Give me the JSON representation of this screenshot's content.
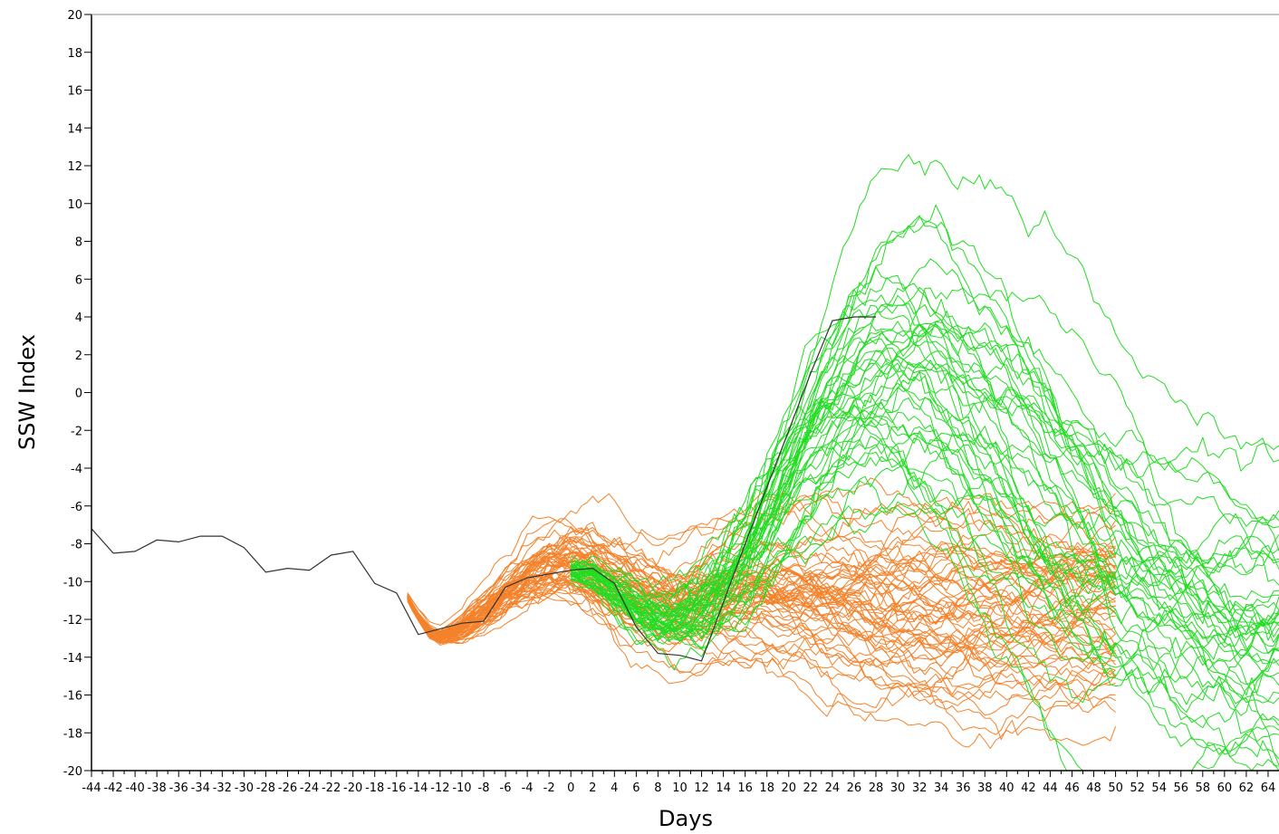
{
  "chart_data": {
    "type": "line",
    "title": "",
    "xlabel": "Days",
    "ylabel": "SSW Index",
    "xlim": [
      -44,
      65
    ],
    "ylim": [
      -20,
      20
    ],
    "y_ticks": [
      -20,
      -18,
      -16,
      -14,
      -12,
      -10,
      -8,
      -6,
      -4,
      -2,
      0,
      2,
      4,
      6,
      8,
      10,
      12,
      14,
      16,
      18,
      20
    ],
    "x_ticks": [
      -44,
      -42,
      -40,
      -38,
      -36,
      -34,
      -32,
      -30,
      -28,
      -26,
      -24,
      -22,
      -20,
      -18,
      -16,
      -14,
      -12,
      -10,
      -8,
      -6,
      -4,
      -2,
      0,
      2,
      4,
      6,
      8,
      10,
      12,
      14,
      16,
      18,
      20,
      22,
      24,
      26,
      28,
      30,
      32,
      34,
      36,
      38,
      40,
      42,
      44,
      46,
      48,
      50,
      52,
      54,
      56,
      58,
      60,
      62,
      64
    ],
    "grid": false,
    "legend": "none",
    "colors": {
      "observed": "#333333",
      "orange_members": "#f5822a",
      "green_members": "#22dd22"
    },
    "observed": {
      "x": [
        -44,
        -42,
        -40,
        -38,
        -36,
        -34,
        -32,
        -30,
        -28,
        -26,
        -24,
        -22,
        -20,
        -18,
        -16,
        -14,
        -12,
        -10,
        -8,
        -6,
        -4,
        -2,
        0,
        2,
        4,
        6,
        8,
        10,
        12,
        14,
        16,
        18,
        20,
        22,
        24,
        26,
        28
      ],
      "y": [
        -7.2,
        -8.5,
        -8.4,
        -7.8,
        -7.9,
        -7.6,
        -7.6,
        -8.2,
        -9.5,
        -9.3,
        -9.4,
        -8.6,
        -8.4,
        -10.1,
        -10.6,
        -12.8,
        -12.5,
        -12.2,
        -12.1,
        -10.3,
        -9.8,
        -9.6,
        -9.4,
        -9.3,
        -10.1,
        -12.4,
        -13.8,
        -13.9,
        -14.2,
        -11.1,
        -8.0,
        -5.0,
        -2.0,
        1.0,
        3.8,
        4.0,
        4.0
      ]
    },
    "ensemble_orange": {
      "start_day": -15,
      "end_day": 50,
      "members": 60,
      "mean": {
        "x": [
          -15,
          -14,
          -13,
          -12,
          -10,
          -8,
          -6,
          -4,
          -2,
          0,
          2,
          4,
          6,
          8,
          10,
          12,
          14,
          16,
          18,
          20,
          22,
          24,
          26,
          28,
          30,
          32,
          34,
          36,
          38,
          40,
          42,
          44,
          46,
          48,
          50
        ],
        "y": [
          -10.8,
          -11.8,
          -12.6,
          -12.9,
          -12.4,
          -11.5,
          -10.5,
          -9.6,
          -9.0,
          -8.9,
          -9.3,
          -10.0,
          -10.6,
          -11.1,
          -11.3,
          -11.0,
          -10.7,
          -10.4,
          -10.3,
          -10.4,
          -10.5,
          -10.6,
          -10.7,
          -10.8,
          -10.8,
          -10.9,
          -11.0,
          -11.1,
          -11.2,
          -11.2,
          -11.2,
          -11.2,
          -11.1,
          -11.0,
          -11.0
        ]
      },
      "spread": {
        "x": [
          -15,
          -12,
          -8,
          -4,
          0,
          4,
          8,
          12,
          16,
          20,
          24,
          28,
          32,
          36,
          40,
          44,
          48,
          50
        ],
        "y": [
          0.1,
          0.2,
          0.5,
          0.8,
          1.0,
          1.2,
          1.3,
          1.6,
          2.0,
          2.4,
          2.6,
          2.8,
          2.9,
          3.0,
          3.1,
          3.2,
          3.3,
          3.3
        ]
      }
    },
    "ensemble_green": {
      "start_day": 0,
      "end_day": 65,
      "members": 45,
      "mean": {
        "x": [
          0,
          2,
          4,
          6,
          8,
          10,
          12,
          14,
          16,
          18,
          20,
          22,
          24,
          26,
          28,
          30,
          32,
          34,
          36,
          38,
          40,
          42,
          44,
          46,
          48,
          50,
          52,
          54,
          56,
          58,
          60,
          62,
          64,
          65
        ],
        "y": [
          -9.4,
          -9.6,
          -10.5,
          -11.4,
          -12.0,
          -12.0,
          -11.5,
          -10.4,
          -9.0,
          -7.0,
          -4.8,
          -2.6,
          -0.8,
          0.6,
          1.4,
          1.6,
          1.3,
          0.6,
          -0.5,
          -1.7,
          -3.0,
          -4.4,
          -5.8,
          -7.0,
          -8.2,
          -9.2,
          -10.0,
          -10.7,
          -11.2,
          -11.6,
          -11.9,
          -12.1,
          -12.2,
          -12.2
        ]
      },
      "spread": {
        "x": [
          0,
          6,
          10,
          14,
          18,
          22,
          26,
          30,
          34,
          38,
          42,
          46,
          50,
          56,
          60,
          65
        ],
        "y": [
          0.3,
          0.6,
          0.9,
          1.6,
          2.6,
          3.6,
          4.4,
          5.0,
          5.2,
          5.3,
          5.4,
          5.5,
          5.4,
          5.3,
          5.2,
          5.2
        ]
      }
    }
  }
}
